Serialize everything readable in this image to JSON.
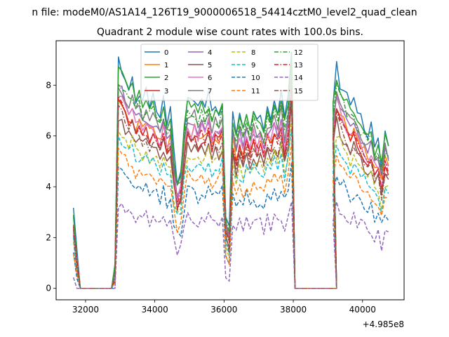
{
  "suptitle": "n file: modeM0/AS1A14_126T19_9000006518_54414cztM0_level2_quad_clean",
  "chart_data": {
    "type": "line",
    "title": "Quadrant 2 module wise count rates with 100.0s bins.",
    "xlabel": "",
    "ylabel": "",
    "x_offset_label": "+4.985e8",
    "x_offset": 498500000,
    "xlim": [
      31150,
      41200
    ],
    "ylim": [
      -0.45,
      9.75
    ],
    "x_ticks": [
      32000,
      34000,
      36000,
      38000,
      40000
    ],
    "x_tick_labels": [
      "32000",
      "34000",
      "36000",
      "38000",
      "40000"
    ],
    "y_ticks": [
      0,
      2,
      4,
      6,
      8
    ],
    "y_tick_labels": [
      "0",
      "2",
      "4",
      "6",
      "8"
    ],
    "grid": false,
    "legend_location": "upper center",
    "legend_columns": 4,
    "segments": [
      {
        "x_start": 31650,
        "x_end": 32750
      },
      {
        "x_start": 32850,
        "x_end": 38050
      },
      {
        "x_start": 39150,
        "x_end": 40750
      }
    ],
    "shape_values": [
      [
        2.4,
        1.0,
        0.0,
        0.0,
        0.0,
        0.0,
        0.0,
        0.0,
        0.0,
        0.0,
        0.0,
        0.0
      ],
      [
        0.6,
        7.8,
        7.6,
        7.2,
        6.9,
        7.1,
        6.6,
        6.8,
        6.4,
        6.7,
        6.3,
        6.5,
        6.2,
        6.0,
        6.4,
        5.8,
        6.1,
        4.5,
        3.6,
        3.9,
        5.5,
        6.6,
        6.3,
        6.5,
        6.1,
        6.4,
        6.2,
        6.6,
        6.0,
        6.3,
        6.1,
        6.5,
        2.4,
        1.8,
        6.0,
        5.4,
        5.9,
        5.5,
        6.1,
        5.6,
        6.2,
        5.8,
        6.0,
        5.5,
        6.2,
        5.9,
        6.5,
        6.1,
        6.8,
        5.7,
        6.6,
        8.3,
        0.0
      ],
      [
        0.0,
        0.0,
        0.0,
        0.0,
        0.0,
        0.0,
        0.0,
        0.0,
        0.0,
        0.0,
        0.0,
        0.0
      ],
      [
        6.4,
        7.6,
        7.1,
        6.8,
        6.5,
        6.2,
        6.4,
        6.0,
        5.8,
        5.6,
        5.3,
        5.5,
        4.8,
        5.0,
        4.2,
        5.2,
        5.0
      ]
    ],
    "x_step": 100,
    "series": [
      {
        "name": "0",
        "color": "#1f77b4",
        "dash": "solid",
        "scale": 1.1,
        "dip": 1.0,
        "off": 0.3
      },
      {
        "name": "1",
        "color": "#ff7f0e",
        "dash": "solid",
        "scale": 0.96,
        "dip": 1.0,
        "off": 0.0
      },
      {
        "name": "2",
        "color": "#2ca02c",
        "dash": "solid",
        "scale": 1.08,
        "dip": 1.0,
        "off": 0.2
      },
      {
        "name": "3",
        "color": "#d62728",
        "dash": "solid",
        "scale": 0.93,
        "dip": 1.0,
        "off": 0.0
      },
      {
        "name": "4",
        "color": "#9467bd",
        "dash": "solid",
        "scale": 1.0,
        "dip": 1.0,
        "off": 0.1
      },
      {
        "name": "5",
        "color": "#8c564b",
        "dash": "solid",
        "scale": 0.88,
        "dip": 1.0,
        "off": -0.1
      },
      {
        "name": "6",
        "color": "#e377c2",
        "dash": "solid",
        "scale": 0.98,
        "dip": 1.0,
        "off": 0.0
      },
      {
        "name": "7",
        "color": "#7f7f7f",
        "dash": "solid",
        "scale": 1.02,
        "dip": 1.0,
        "off": 0.15
      },
      {
        "name": "8",
        "color": "#bcbd22",
        "dash": "dashed",
        "scale": 0.84,
        "dip": 1.0,
        "off": -0.2
      },
      {
        "name": "9",
        "color": "#17becf",
        "dash": "dashed",
        "scale": 0.78,
        "dip": 1.0,
        "off": -0.1
      },
      {
        "name": "10",
        "color": "#1f77b4",
        "dash": "dashed",
        "scale": 0.64,
        "dip": 1.0,
        "off": -0.3
      },
      {
        "name": "11",
        "color": "#ff7f0e",
        "dash": "dashed",
        "scale": 0.72,
        "dip": 1.0,
        "off": -0.2
      },
      {
        "name": "12",
        "color": "#2ca02c",
        "dash": "dashdot",
        "scale": 1.05,
        "dip": 1.0,
        "off": 0.1
      },
      {
        "name": "13",
        "color": "#d62728",
        "dash": "dashdot",
        "scale": 0.94,
        "dip": 1.0,
        "off": 0.0
      },
      {
        "name": "14",
        "color": "#9467bd",
        "dash": "dashed",
        "scale": 0.46,
        "dip": 0.6,
        "off": -0.2
      },
      {
        "name": "15",
        "color": "#8c564b",
        "dash": "dashdot",
        "scale": 0.91,
        "dip": 1.0,
        "off": -0.1
      }
    ]
  }
}
